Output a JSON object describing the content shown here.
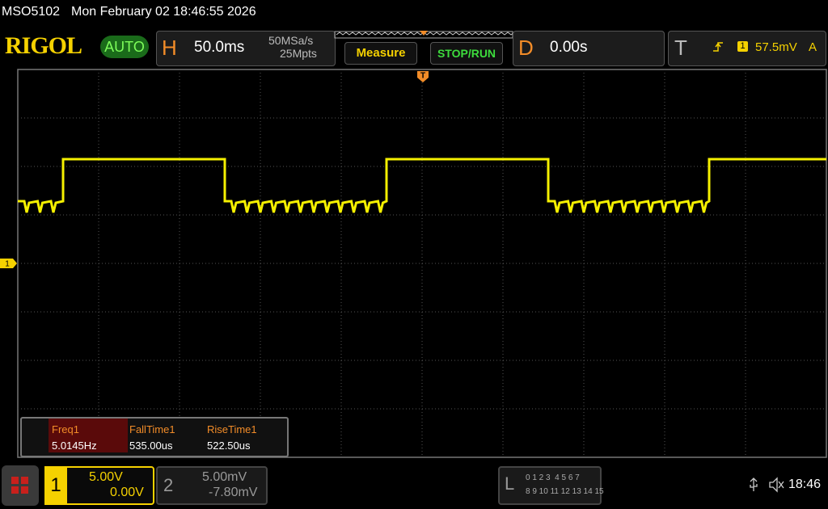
{
  "header": {
    "model": "MSO5102",
    "datetime": "Mon February 02 18:46:55 2026"
  },
  "logo": {
    "brand": "RIGOL",
    "mode": "AUTO"
  },
  "horizontal": {
    "label": "H",
    "timebase": "50.0ms",
    "sample_rate": "50MSa/s",
    "depth": "25Mpts"
  },
  "buttons": {
    "measure": "Measure",
    "stop_run": "STOP/RUN"
  },
  "delay": {
    "label": "D",
    "value": "0.00s"
  },
  "trigger": {
    "label": "T",
    "channel": "1",
    "level": "57.5mV",
    "mode": "A"
  },
  "markers": {
    "trigger": "T",
    "ground": "1"
  },
  "measurements": {
    "headers": [
      "Freq1",
      "FallTime1",
      "RiseTime1"
    ],
    "values": [
      "5.0145Hz",
      "535.00us",
      "522.50us"
    ]
  },
  "channel1": {
    "label": "1",
    "scale": "5.00V",
    "offset": "0.00V"
  },
  "channel2": {
    "label": "2",
    "scale": "5.00mV",
    "offset": "-7.80mV"
  },
  "logic": {
    "label": "L",
    "row1": "0 1 2 3  4 5 6 7",
    "row2": "8 9 10 11 12 13 14 15"
  },
  "status": {
    "clock": "18:46"
  }
}
